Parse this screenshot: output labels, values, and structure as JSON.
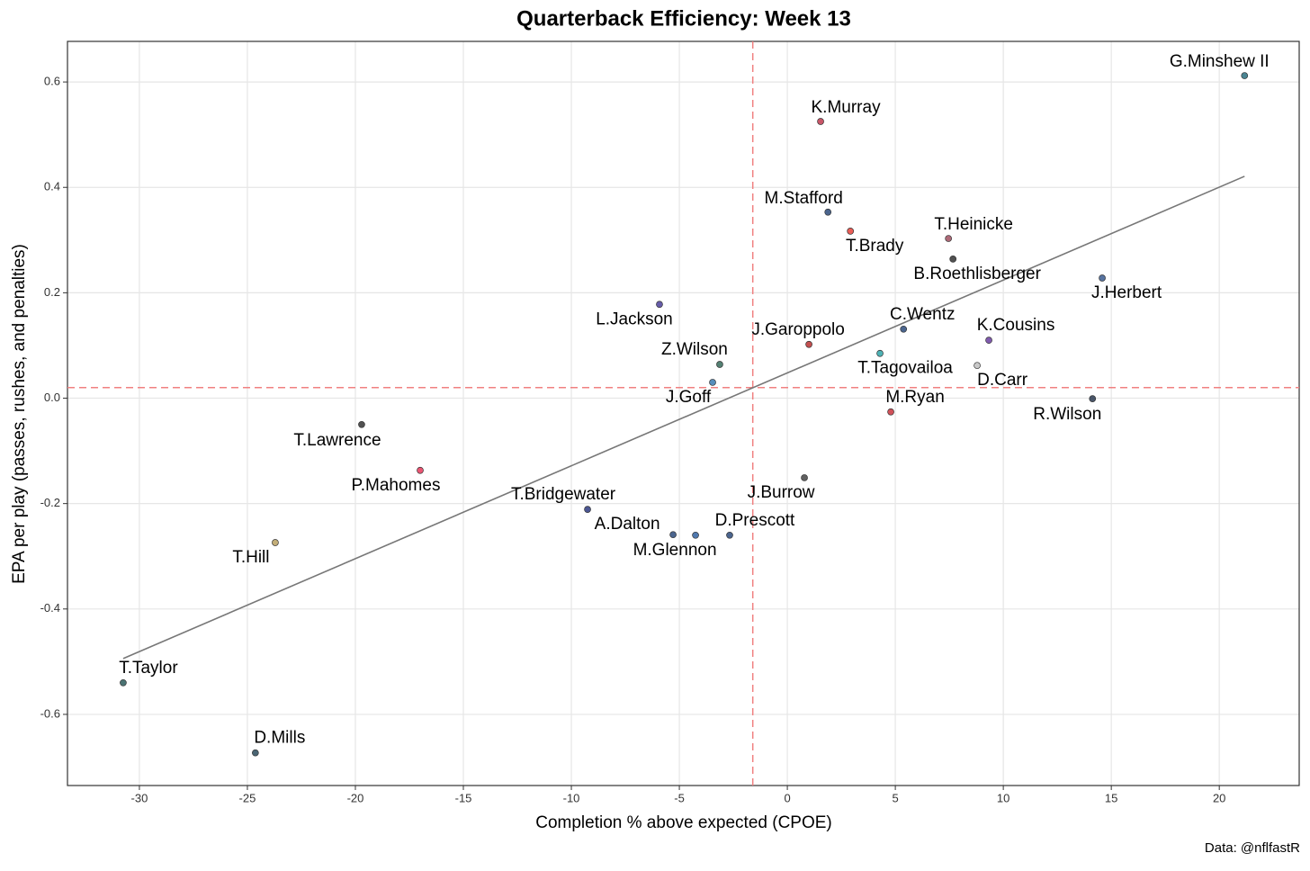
{
  "chart_data": {
    "type": "scatter",
    "title": "Quarterback Efficiency: Week 13",
    "x_label": "Completion % above expected (CPOE)",
    "y_label": "EPA per play (passes, rushes, and penalties)",
    "caption": "Data: @nflfastR",
    "labels": [
      "G.Minshew II",
      "K.Murray",
      "M.Stafford",
      "T.Brady",
      "T.Heinicke",
      "B.Roethlisberger",
      "J.Herbert",
      "L.Jackson",
      "C.Wentz",
      "J.Garoppolo",
      "K.Cousins",
      "T.Tagovailoa",
      "Z.Wilson",
      "D.Carr",
      "J.Goff",
      "R.Wilson",
      "M.Ryan",
      "T.Lawrence",
      "P.Mahomes",
      "J.Burrow",
      "T.Bridgewater",
      "A.Dalton",
      "M.Glennon",
      "D.Prescott",
      "T.Hill",
      "T.Taylor",
      "D.Mills"
    ],
    "x": [
      21.17,
      1.54,
      1.88,
      2.92,
      7.46,
      7.67,
      14.58,
      -5.92,
      5.38,
      1.0,
      9.33,
      4.29,
      -3.13,
      8.79,
      -3.46,
      14.13,
      4.79,
      -19.71,
      -17.0,
      0.79,
      -9.25,
      -5.29,
      -4.25,
      -2.67,
      -23.71,
      -30.75,
      -24.63
    ],
    "y": [
      0.612,
      0.525,
      0.353,
      0.317,
      0.303,
      0.264,
      0.228,
      0.178,
      0.131,
      0.102,
      0.11,
      0.085,
      0.064,
      0.062,
      0.03,
      -0.001,
      -0.026,
      -0.05,
      -0.137,
      -0.151,
      -0.211,
      -0.259,
      -0.26,
      -0.26,
      -0.274,
      -0.54,
      -0.673
    ],
    "colors": [
      "#2a6e7f",
      "#c0384e",
      "#2c4a7a",
      "#e8423a",
      "#a05060",
      "#333333",
      "#3a5b8f",
      "#4b3f9a",
      "#2c4a7a",
      "#b83030",
      "#6a3ea0",
      "#2fa5a8",
      "#356a5a",
      "#c0c0c0",
      "#3a7ab0",
      "#2a3a50",
      "#c8323c",
      "#333333",
      "#e8385a",
      "#444444",
      "#2d3a80",
      "#2c4a7a",
      "#3060a0",
      "#2c4a7a",
      "#b8a060",
      "#2a5a5a",
      "#2a4a5a"
    ],
    "reference_lines": {
      "x": -1.6,
      "y": 0.02,
      "color": "#f08080"
    },
    "trend_line": {
      "x": [
        -30.75,
        21.17
      ],
      "y": [
        -0.494,
        0.421
      ],
      "color": "#777777"
    },
    "xlim": [
      -33.33,
      23.7
    ],
    "ylim": [
      -0.735,
      0.677
    ],
    "xticks": [
      -30,
      -25,
      -20,
      -15,
      -10,
      -5,
      0,
      5,
      10,
      15,
      20
    ],
    "yticks": [
      -0.6,
      -0.4,
      -0.2,
      {
        "value": 0,
        "label": "0.0"
      },
      0.2,
      0.4,
      0.6
    ],
    "grid": true
  }
}
